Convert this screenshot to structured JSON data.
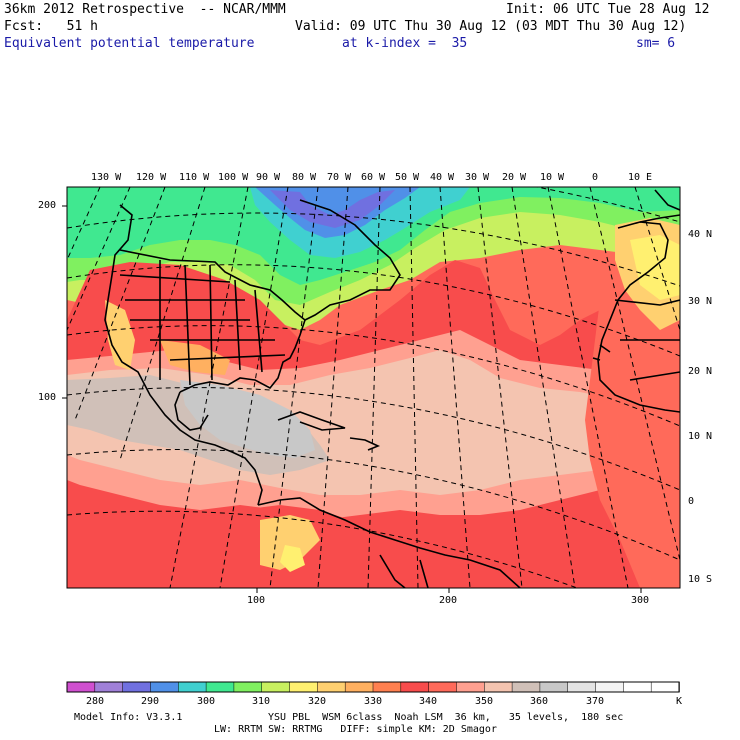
{
  "header": {
    "line1_left": "36km 2012 Retrospective  -- NCAR/MMM",
    "line1_right": "Init: 06 UTC Tue 28 Aug 12",
    "line2_left": "Fcst:   51 h",
    "line2_right": "Valid: 09 UTC Thu 30 Aug 12 (03 MDT Thu 30 Aug 12)",
    "field": "Equivalent potential temperature",
    "level": "at k-index =  35",
    "smoothing": "sm= 6"
  },
  "axes": {
    "top_longitudes": [
      "130 W",
      "120 W",
      "110 W",
      "100 W",
      "90 W",
      "80 W",
      "70 W",
      "60 W",
      "50 W",
      "40 W",
      "30 W",
      "20 W",
      "10 W",
      "0",
      "10 E"
    ],
    "right_latitudes": [
      "40 N",
      "30 N",
      "20 N",
      "10 N",
      "0",
      "10 S"
    ],
    "left_grid": [
      "200",
      "100"
    ],
    "bottom_grid": [
      "100",
      "200",
      "300"
    ]
  },
  "colorbar": {
    "labels": [
      "280",
      "290",
      "300",
      "310",
      "320",
      "330",
      "340",
      "350",
      "360",
      "370"
    ],
    "unit": "K",
    "colors": [
      "#d050d0",
      "#a080d8",
      "#7070e0",
      "#5090e8",
      "#40d0d0",
      "#40e890",
      "#80f060",
      "#c8f060",
      "#fff070",
      "#ffd070",
      "#ffb060",
      "#ff8050",
      "#f84c4c",
      "#ff6a5a",
      "#ffa090",
      "#f4c4b0",
      "#d0c0b8",
      "#c8c8c8",
      "#e4e4e4",
      "#f4f4f4",
      "#ffffff",
      "#ffffff"
    ]
  },
  "footer": {
    "line1_left": "Model Info: V3.3.1",
    "line1_right": "YSU PBL  WSM 6class  Noah LSM  36 km,   35 levels,  180 sec",
    "line2": "LW: RRTM SW: RRTMG   DIFF: simple KM: 2D Smagor"
  }
}
